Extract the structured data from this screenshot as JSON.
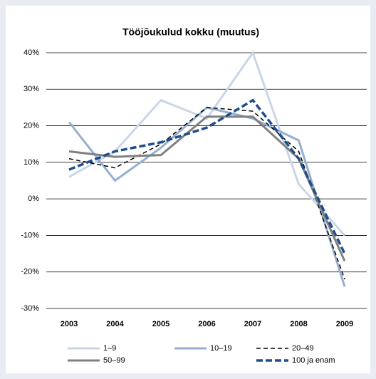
{
  "chart_data": {
    "type": "line",
    "title": "Tööjõukulud kokku (muutus)",
    "categories": [
      "2003",
      "2004",
      "2005",
      "2006",
      "2007",
      "2008",
      "2009"
    ],
    "ylim": [
      -30,
      40
    ],
    "yticks": [
      {
        "value": -30,
        "label": "-30%"
      },
      {
        "value": -20,
        "label": "-20%"
      },
      {
        "value": -10,
        "label": "-10%"
      },
      {
        "value": 0,
        "label": "0%"
      },
      {
        "value": 10,
        "label": "10%"
      },
      {
        "value": 20,
        "label": "20%"
      },
      {
        "value": 30,
        "label": "30%"
      },
      {
        "value": 40,
        "label": "40%"
      }
    ],
    "grid": true,
    "series": [
      {
        "name": "1–9",
        "color": "#c9d6e8",
        "dash": false,
        "width": 3,
        "values": [
          6,
          13,
          27,
          22,
          40,
          4,
          -10
        ]
      },
      {
        "name": "10–19",
        "color": "#95afd1",
        "dash": false,
        "width": 3,
        "values": [
          21,
          5,
          14,
          25,
          22,
          16,
          -24
        ]
      },
      {
        "name": "20–49",
        "color": "#000000",
        "dash": true,
        "width": 1.5,
        "values": [
          11,
          8.5,
          15,
          25,
          24,
          13,
          -22
        ]
      },
      {
        "name": "50–99",
        "color": "#808080",
        "dash": false,
        "width": 3,
        "values": [
          13,
          11.5,
          12,
          22.5,
          22.5,
          11,
          -17
        ]
      },
      {
        "name": "100 ja enam",
        "color": "#1f4e8c",
        "dash": true,
        "width": 3.5,
        "values": [
          8,
          13,
          15.5,
          19.5,
          27,
          11,
          -15
        ]
      }
    ]
  }
}
